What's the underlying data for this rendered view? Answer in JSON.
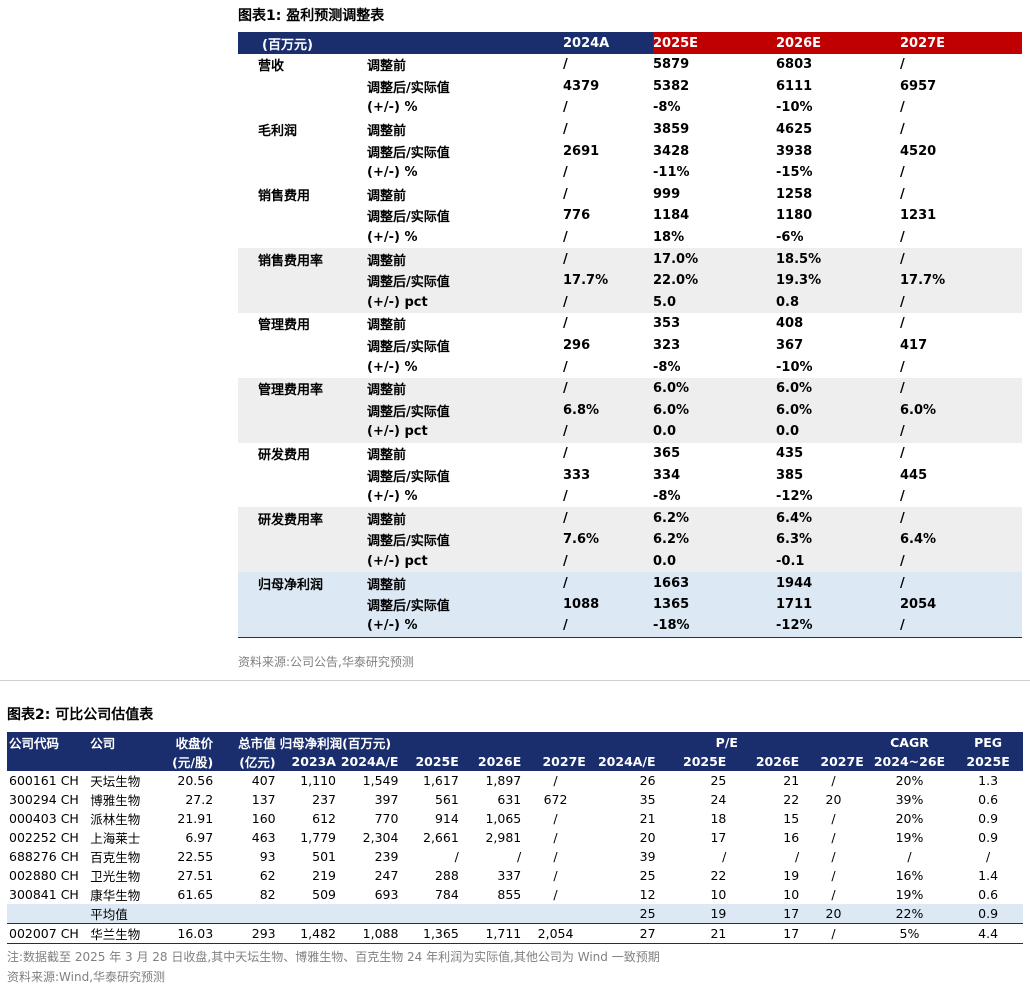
{
  "table1": {
    "title": "图表1:  盈利预测调整表",
    "headers": [
      "(百万元)",
      "",
      "2024A",
      "2025E",
      "2026E",
      "2027E"
    ],
    "groups": [
      {
        "name": "营收",
        "rows": [
          [
            "调整前",
            "/",
            "5879",
            "6803",
            "/"
          ],
          [
            "调整后/实际值",
            "4379",
            "5382",
            "6111",
            "6957"
          ],
          [
            "(+/-) %",
            "/",
            "-8%",
            "-10%",
            "/"
          ]
        ]
      },
      {
        "name": "毛利润",
        "rows": [
          [
            "调整前",
            "/",
            "3859",
            "4625",
            "/"
          ],
          [
            "调整后/实际值",
            "2691",
            "3428",
            "3938",
            "4520"
          ],
          [
            "(+/-) %",
            "/",
            "-11%",
            "-15%",
            "/"
          ]
        ]
      },
      {
        "name": "销售费用",
        "rows": [
          [
            "调整前",
            "/",
            "999",
            "1258",
            "/"
          ],
          [
            "调整后/实际值",
            "776",
            "1184",
            "1180",
            "1231"
          ],
          [
            "(+/-) %",
            "/",
            "18%",
            "-6%",
            "/"
          ]
        ]
      },
      {
        "name": "销售费用率",
        "rows": [
          [
            "调整前",
            "/",
            "17.0%",
            "18.5%",
            "/"
          ],
          [
            "调整后/实际值",
            "17.7%",
            "22.0%",
            "19.3%",
            "17.7%"
          ],
          [
            "(+/-) pct",
            "/",
            "5.0",
            "0.8",
            "/"
          ]
        ]
      },
      {
        "name": "管理费用",
        "rows": [
          [
            "调整前",
            "/",
            "353",
            "408",
            "/"
          ],
          [
            "调整后/实际值",
            "296",
            "323",
            "367",
            "417"
          ],
          [
            "(+/-) %",
            "/",
            "-8%",
            "-10%",
            "/"
          ]
        ]
      },
      {
        "name": "管理费用率",
        "rows": [
          [
            "调整前",
            "/",
            "6.0%",
            "6.0%",
            "/"
          ],
          [
            "调整后/实际值",
            "6.8%",
            "6.0%",
            "6.0%",
            "6.0%"
          ],
          [
            "(+/-) pct",
            "/",
            "0.0",
            "0.0",
            "/"
          ]
        ]
      },
      {
        "name": "研发费用",
        "rows": [
          [
            "调整前",
            "/",
            "365",
            "435",
            "/"
          ],
          [
            "调整后/实际值",
            "333",
            "334",
            "385",
            "445"
          ],
          [
            "(+/-) %",
            "/",
            "-8%",
            "-12%",
            "/"
          ]
        ]
      },
      {
        "name": "研发费用率",
        "rows": [
          [
            "调整前",
            "/",
            "6.2%",
            "6.4%",
            "/"
          ],
          [
            "调整后/实际值",
            "7.6%",
            "6.2%",
            "6.3%",
            "6.4%"
          ],
          [
            "(+/-) pct",
            "/",
            "0.0",
            "-0.1",
            "/"
          ]
        ]
      },
      {
        "name": "归母净利润",
        "rows": [
          [
            "调整前",
            "/",
            "1663",
            "1944",
            "/"
          ],
          [
            "调整后/实际值",
            "1088",
            "1365",
            "1711",
            "2054"
          ],
          [
            "(+/-) %",
            "/",
            "-18%",
            "-12%",
            "/"
          ]
        ]
      }
    ],
    "source": "资料来源:公司公告,华泰研究预测"
  },
  "table2": {
    "title": "图表2:  可比公司估值表",
    "header_row1": [
      "公司代码",
      "公司",
      "收盘价",
      "总市值",
      "归母净利润(百万元)",
      "",
      "",
      "",
      "",
      "P/E",
      "",
      "",
      "",
      "CAGR",
      "PEG"
    ],
    "header_row2": [
      "",
      "",
      "(元/股)",
      "(亿元)",
      "2023A",
      "2024A/E",
      "2025E",
      "2026E",
      "2027E",
      "2024A/E",
      "2025E",
      "2026E",
      "2027E",
      "2024~26E",
      "2025E"
    ],
    "rows": [
      [
        "600161 CH",
        "天坛生物",
        "20.56",
        "407",
        "1,110",
        "1,549",
        "1,617",
        "1,897",
        "/",
        "26",
        "25",
        "21",
        "/",
        "20%",
        "1.3"
      ],
      [
        "300294 CH",
        "博雅生物",
        "27.2",
        "137",
        "237",
        "397",
        "561",
        "631",
        "672",
        "35",
        "24",
        "22",
        "20",
        "39%",
        "0.6"
      ],
      [
        "000403 CH",
        "派林生物",
        "21.91",
        "160",
        "612",
        "770",
        "914",
        "1,065",
        "/",
        "21",
        "18",
        "15",
        "/",
        "20%",
        "0.9"
      ],
      [
        "002252 CH",
        "上海莱士",
        "6.97",
        "463",
        "1,779",
        "2,304",
        "2,661",
        "2,981",
        "/",
        "20",
        "17",
        "16",
        "/",
        "19%",
        "0.9"
      ],
      [
        "688276 CH",
        "百克生物",
        "22.55",
        "93",
        "501",
        "239",
        "/",
        "/",
        "/",
        "39",
        "/",
        "/",
        "/",
        "/",
        "/"
      ],
      [
        "002880 CH",
        "卫光生物",
        "27.51",
        "62",
        "219",
        "247",
        "288",
        "337",
        "/",
        "25",
        "22",
        "19",
        "/",
        "16%",
        "1.4"
      ],
      [
        "300841 CH",
        "康华生物",
        "61.65",
        "82",
        "509",
        "693",
        "784",
        "855",
        "/",
        "12",
        "10",
        "10",
        "/",
        "19%",
        "0.6"
      ]
    ],
    "average_row": [
      "",
      "平均值",
      "",
      "",
      "",
      "",
      "",
      "",
      "",
      "25",
      "19",
      "17",
      "20",
      "22%",
      "0.9"
    ],
    "target_row": [
      "002007 CH",
      "华兰生物",
      "16.03",
      "293",
      "1,482",
      "1,088",
      "1,365",
      "1,711",
      "2,054",
      "27",
      "21",
      "17",
      "/",
      "5%",
      "4.4"
    ],
    "note": "注:数据截至 2025 年 3 月 28 日收盘,其中天坛生物、博雅生物、百克生物 24 年利润为实际值,其他公司为 Wind 一致预期",
    "source": "资料来源:Wind,华泰研究预测"
  }
}
